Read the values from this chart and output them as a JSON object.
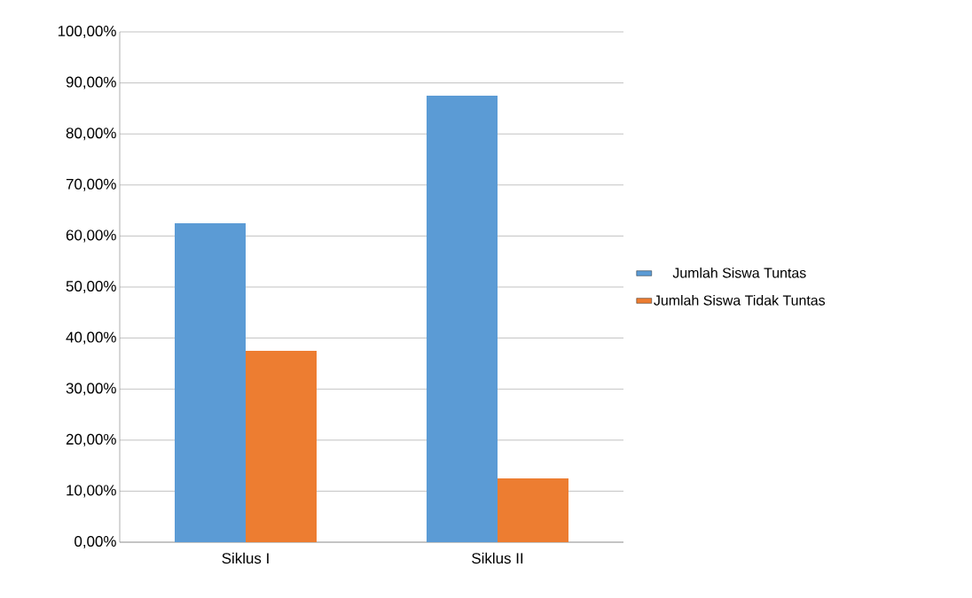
{
  "chart_data": {
    "type": "bar",
    "categories": [
      "Siklus I",
      "Siklus II"
    ],
    "series": [
      {
        "name": "Jumlah Siswa Tuntas",
        "color": "#5b9bd5",
        "values": [
          62.5,
          87.5
        ]
      },
      {
        "name": "Jumlah Siswa Tidak Tuntas",
        "color": "#ed7d31",
        "values": [
          37.5,
          12.5
        ]
      }
    ],
    "ylim": [
      0,
      100
    ],
    "yticks": [
      {
        "value": 0,
        "label": "0,00%"
      },
      {
        "value": 10,
        "label": "10,00%"
      },
      {
        "value": 20,
        "label": "20,00%"
      },
      {
        "value": 30,
        "label": "30,00%"
      },
      {
        "value": 40,
        "label": "40,00%"
      },
      {
        "value": 50,
        "label": "50,00%"
      },
      {
        "value": 60,
        "label": "60,00%"
      },
      {
        "value": 70,
        "label": "70,00%"
      },
      {
        "value": 80,
        "label": "80,00%"
      },
      {
        "value": 90,
        "label": "90,00%"
      },
      {
        "value": 100,
        "label": "100,00%"
      }
    ],
    "grid": "y",
    "legend": "right"
  }
}
